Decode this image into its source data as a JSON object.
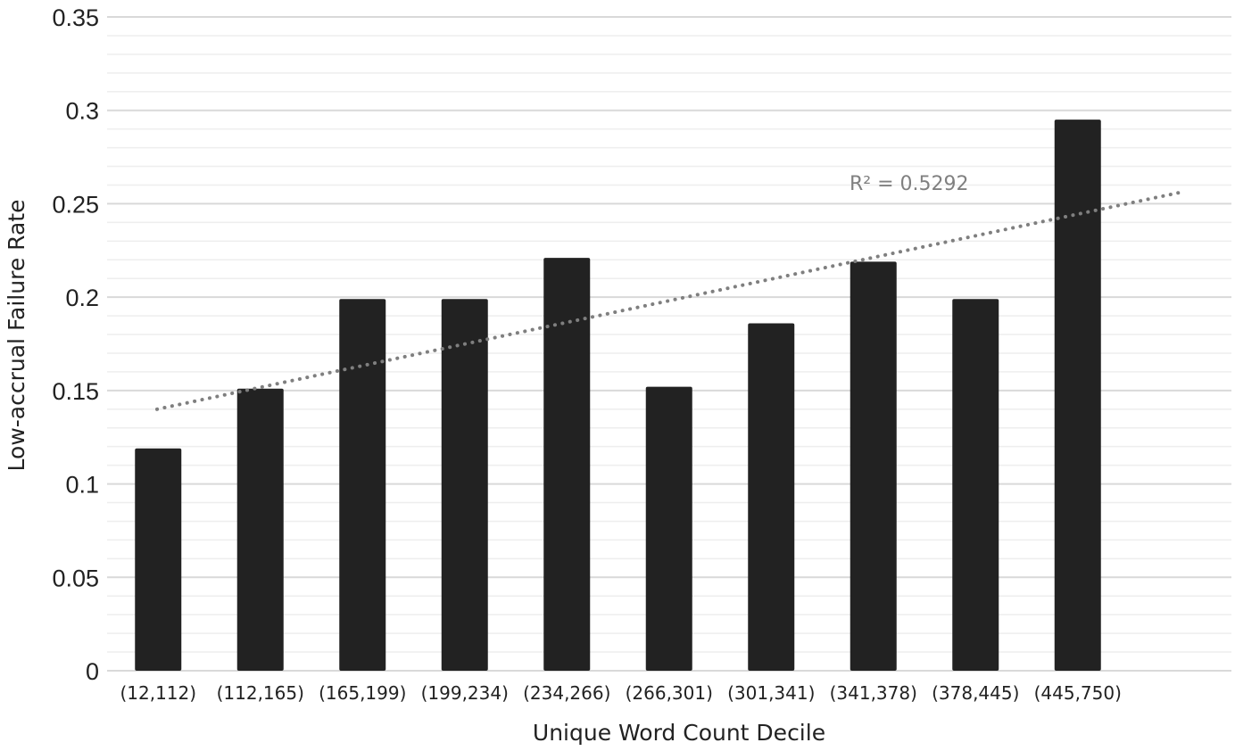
{
  "chart_data": {
    "type": "bar",
    "xlabel": "Unique Word Count Decile",
    "ylabel": "Low-accrual Failure Rate",
    "categories": [
      "(12,112)",
      "(112,165)",
      "(165,199)",
      "(199,234)",
      "(234,266)",
      "(266,301)",
      "(301,341)",
      "(341,378)",
      "(378,445)",
      "(445,750)"
    ],
    "values": [
      0.119,
      0.151,
      0.199,
      0.199,
      0.221,
      0.152,
      0.186,
      0.219,
      0.199,
      0.295
    ],
    "ylim": [
      0,
      0.35
    ],
    "yticks": [
      0,
      0.05,
      0.1,
      0.15,
      0.2,
      0.25,
      0.3,
      0.35
    ],
    "ytick_labels": [
      "0",
      "0.05",
      "0.1",
      "0.15",
      "0.2",
      "0.25",
      "0.3",
      "0.35"
    ],
    "grid": true,
    "bar_color": "#222222",
    "trendline": {
      "type": "linear",
      "style": "dotted",
      "color": "#7f7f7f",
      "start_value": 0.14,
      "end_value": 0.256,
      "annotation": "R² = 0.5292"
    }
  }
}
